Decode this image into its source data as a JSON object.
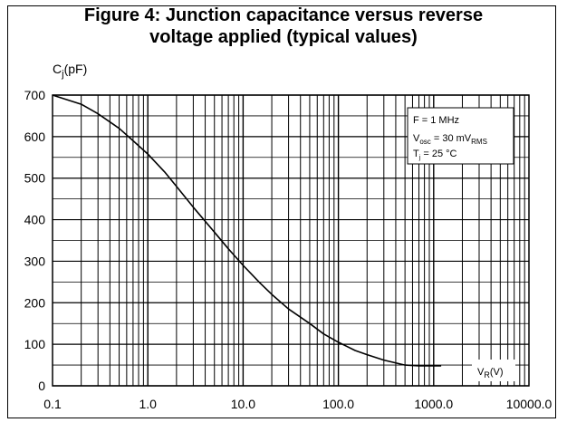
{
  "chart_data": {
    "type": "line",
    "title_lines": [
      "Figure 4: Junction capacitance versus reverse",
      "voltage applied (typical values)"
    ],
    "ylabel": {
      "main": "C",
      "sub": "j",
      "rest": "(pF)"
    },
    "xlabel": {
      "main": "V",
      "sub": "R",
      "rest": "(V)"
    },
    "x_scale": "log",
    "xlim": [
      0.1,
      10000
    ],
    "ylim": [
      0,
      700
    ],
    "x_ticks": [
      0.1,
      1,
      10,
      100,
      1000,
      10000
    ],
    "x_tick_labels": [
      "0.1",
      "1.0",
      "10.0",
      "100.0",
      "1000.0",
      "10000.0"
    ],
    "y_ticks": [
      0,
      100,
      200,
      300,
      400,
      500,
      600,
      700
    ],
    "y_tick_labels": [
      "0",
      "100",
      "200",
      "300",
      "400",
      "500",
      "600",
      "700"
    ],
    "grid": true,
    "annotations": {
      "frequency": "F = 1 MHz",
      "osc": {
        "main": "V",
        "sub": "osc",
        "mid": " = 30 mV",
        "sub2": "RMS"
      },
      "temp": {
        "main": "T",
        "sub": "j",
        "rest": " = 25 °C"
      }
    },
    "series": [
      {
        "x": [
          0.1,
          0.2,
          0.3,
          0.5,
          0.7,
          1,
          1.5,
          2,
          3,
          5,
          7,
          10,
          15,
          20,
          30,
          50,
          70,
          100,
          150,
          200,
          300,
          500,
          700,
          1000,
          1200
        ],
        "y": [
          700,
          678,
          655,
          620,
          590,
          558,
          515,
          480,
          430,
          370,
          330,
          290,
          248,
          220,
          185,
          150,
          125,
          105,
          85,
          75,
          62,
          50,
          48,
          48,
          48
        ]
      }
    ]
  }
}
